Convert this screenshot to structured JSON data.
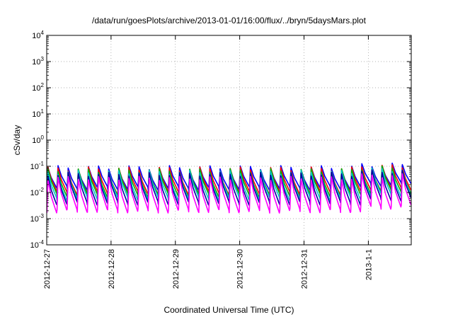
{
  "chart_data": {
    "type": "line",
    "title": "/data/run/goesPlots/archive/2013-01-01/16:00/flux/../bryn/5daysMars.plot",
    "xlabel": "Coordinated Universal Time (UTC)",
    "ylabel": "cSv/day",
    "yscale": "log",
    "ylim": [
      0.0001,
      10000
    ],
    "xlim": [
      "2012-12-27 00:00",
      "2013-01-01 16:00"
    ],
    "grid": true,
    "y_ticks": [
      {
        "base": "10",
        "exp": "-4",
        "value": 0.0001
      },
      {
        "base": "10",
        "exp": "-3",
        "value": 0.001
      },
      {
        "base": "10",
        "exp": "-2",
        "value": 0.01
      },
      {
        "base": "10",
        "exp": "-1",
        "value": 0.1
      },
      {
        "base": "10",
        "exp": "0",
        "value": 1
      },
      {
        "base": "10",
        "exp": "1",
        "value": 10
      },
      {
        "base": "10",
        "exp": "2",
        "value": 100
      },
      {
        "base": "10",
        "exp": "3",
        "value": 1000
      },
      {
        "base": "10",
        "exp": "4",
        "value": 10000
      }
    ],
    "x_ticks": [
      {
        "label": "2012-12-27",
        "value": "2012-12-27 00:00"
      },
      {
        "label": "2012-12-28",
        "value": "2012-12-28 00:00"
      },
      {
        "label": "2012-12-29",
        "value": "2012-12-29 00:00"
      },
      {
        "label": "2012-12-30",
        "value": "2012-12-30 00:00"
      },
      {
        "label": "2012-12-31",
        "value": "2012-12-31 00:00"
      },
      {
        "label": "2013-1-1",
        "value": "2013-01-01 00:00"
      }
    ],
    "series_shape": "periodic sawtooth, ~36 peaks over the window, sharp rise then decay",
    "series": [
      {
        "color": "#0000ff",
        "peak": 0.09,
        "trough": 0.015
      },
      {
        "color": "#ff0000",
        "peak": 0.08,
        "trough": 0.01
      },
      {
        "color": "#00b000",
        "peak": 0.07,
        "trough": 0.008
      },
      {
        "color": "#00c8c8",
        "peak": 0.06,
        "trough": 0.006
      },
      {
        "color": "#0000a0",
        "peak": 0.05,
        "trough": 0.004
      },
      {
        "color": "#ff00ff",
        "peak": 0.035,
        "trough": 0.002
      }
    ]
  }
}
